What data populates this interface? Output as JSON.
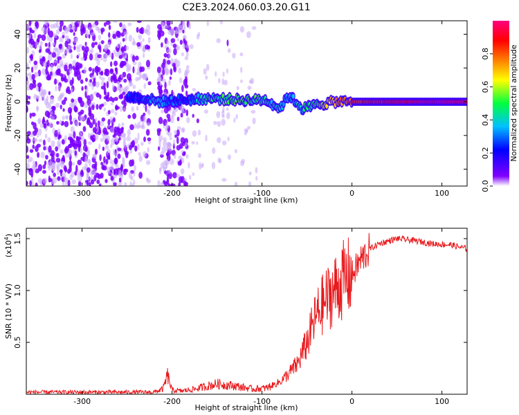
{
  "title": "C2E3.2024.060.03.20.G11",
  "chart_data": [
    {
      "type": "heatmap",
      "xlabel": "Height of straight line (km)",
      "ylabel": "Frequency (Hz)",
      "xlim": [
        -362,
        128
      ],
      "ylim": [
        -50,
        48
      ],
      "xticks": [
        -300,
        -200,
        -100,
        0,
        100
      ],
      "yticks": [
        -40,
        -20,
        0,
        20,
        40
      ],
      "xtick_labels": [
        "-300",
        "-200",
        "-100",
        "0",
        "100"
      ],
      "ytick_labels": [
        "-40",
        "-20",
        "0",
        "20",
        "40"
      ],
      "colorbar": {
        "label": "Normalized spectral amplitude",
        "range": [
          0,
          1
        ],
        "ticks": [
          0.0,
          0.2,
          0.4,
          0.6,
          0.8
        ],
        "tick_labels": [
          "0.0",
          "0.2",
          "0.4",
          "0.6",
          "0.8"
        ],
        "colormap": [
          "#ffffff",
          "#8000ff",
          "#0000ff",
          "#00c0ff",
          "#00ff40",
          "#ffff00",
          "#ff8000",
          "#ff0000",
          "#ff00a0"
        ]
      },
      "signal_track": [
        {
          "x": -250,
          "freq": 3,
          "amp": 0.25
        },
        {
          "x": -230,
          "freq": 2,
          "amp": 0.3
        },
        {
          "x": -215,
          "freq": 0,
          "amp": 0.35
        },
        {
          "x": -190,
          "freq": 1,
          "amp": 0.25
        },
        {
          "x": -160,
          "freq": 2,
          "amp": 0.45
        },
        {
          "x": -120,
          "freq": 1,
          "amp": 0.5
        },
        {
          "x": -95,
          "freq": 1,
          "amp": 0.45
        },
        {
          "x": -80,
          "freq": -4,
          "amp": 0.4
        },
        {
          "x": -70,
          "freq": 4,
          "amp": 0.35
        },
        {
          "x": -55,
          "freq": -4,
          "amp": 0.45
        },
        {
          "x": -40,
          "freq": -2,
          "amp": 0.5
        },
        {
          "x": -20,
          "freq": 0,
          "amp": 0.7
        },
        {
          "x": 0,
          "freq": 0,
          "amp": 0.8
        },
        {
          "x": 50,
          "freq": 0,
          "amp": 0.9
        },
        {
          "x": 100,
          "freq": 0,
          "amp": 0.95
        },
        {
          "x": 128,
          "freq": 0,
          "amp": 0.95
        }
      ]
    },
    {
      "type": "line",
      "xlabel": "Height of straight line (km)",
      "ylabel": "SNR (10 * V/V)",
      "multiplier_label": "(x10",
      "multiplier_exp": "4",
      "multiplier_close": ")",
      "xlim": [
        -362,
        128
      ],
      "ylim": [
        0,
        1.6
      ],
      "xticks": [
        -300,
        -200,
        -100,
        0,
        100
      ],
      "yticks": [
        0.5,
        1.0,
        1.5
      ],
      "xtick_labels": [
        "-300",
        "-200",
        "-100",
        "0",
        "100"
      ],
      "ytick_labels": [
        "0.5",
        "1.0",
        "1.5"
      ],
      "series": [
        {
          "color": "#e8191c",
          "x": [
            -362,
            -300,
            -250,
            -220,
            -210,
            -205,
            -200,
            -190,
            -175,
            -150,
            -130,
            -110,
            -95,
            -80,
            -70,
            -60,
            -50,
            -40,
            -30,
            -20,
            -10,
            0,
            10,
            20,
            30,
            50,
            70,
            90,
            110,
            128
          ],
          "y": [
            0.02,
            0.02,
            0.02,
            0.02,
            0.05,
            0.18,
            0.04,
            0.03,
            0.05,
            0.1,
            0.08,
            0.05,
            0.06,
            0.12,
            0.2,
            0.3,
            0.5,
            0.75,
            0.9,
            1.0,
            1.1,
            1.15,
            1.3,
            1.4,
            1.45,
            1.5,
            1.48,
            1.45,
            1.44,
            1.4
          ]
        }
      ]
    }
  ]
}
